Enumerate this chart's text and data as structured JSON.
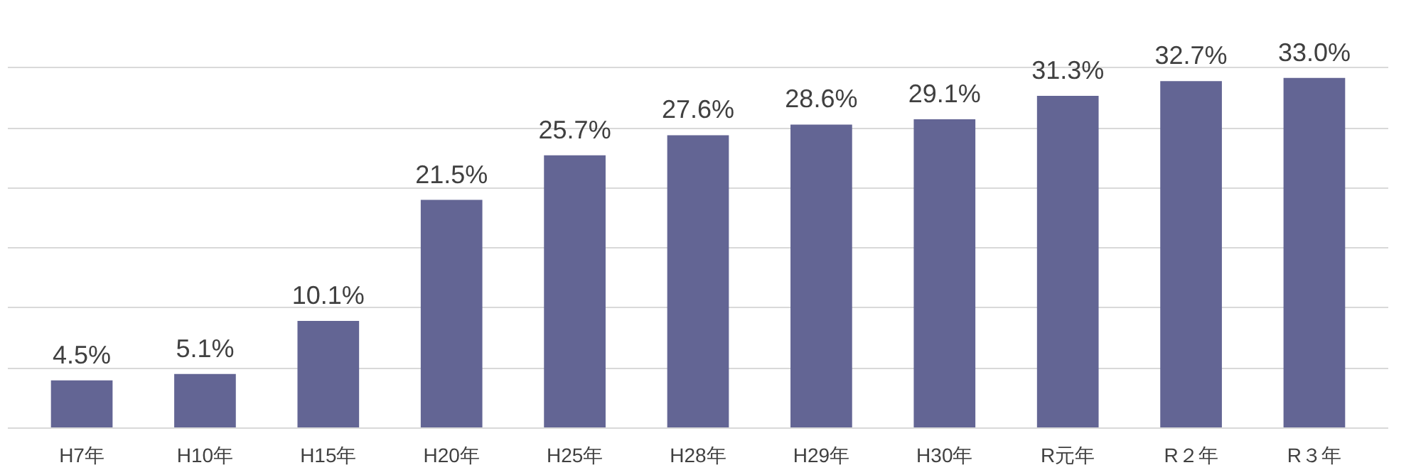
{
  "chart_data": {
    "type": "bar",
    "categories": [
      "H7年",
      "H10年",
      "H15年",
      "H20年",
      "H25年",
      "H28年",
      "H29年",
      "H30年",
      "R元年",
      "R２年",
      "R３年"
    ],
    "values": [
      4.5,
      5.1,
      10.1,
      21.5,
      25.7,
      27.6,
      28.6,
      29.1,
      31.3,
      32.7,
      33.0
    ],
    "value_labels": [
      "4.5%",
      "5.1%",
      "10.1%",
      "21.5%",
      "25.7%",
      "27.6%",
      "28.6%",
      "29.1%",
      "31.3%",
      "32.7%",
      "33.0%"
    ],
    "color": "#636594",
    "grid": "y",
    "tick_labels": "x"
  }
}
